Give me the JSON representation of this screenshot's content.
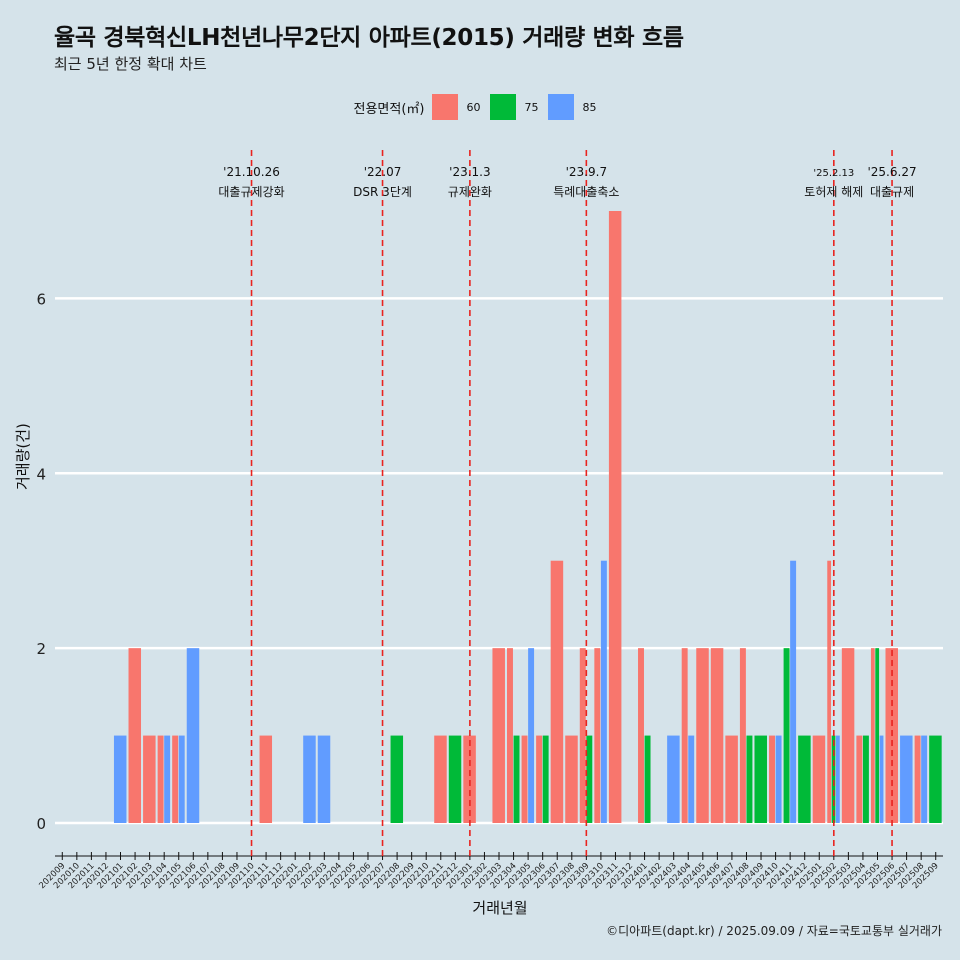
{
  "title": "율곡 경북혁신LH천년나무2단지 아파트(2015) 거래량 변화 흐름",
  "subtitle": "최근 5년 한정 확대 차트",
  "caption": "©디아파트(dapt.kr) / 2025.09.09 / 자료=국토교통부 실거래가",
  "colors": {
    "60": "#f8766d",
    "75": "#00ba38",
    "85": "#619cff",
    "background": "#d5e3ea",
    "event_line": "#e8231f"
  },
  "chart_data": {
    "type": "bar",
    "title": "율곡 경북혁신LH천년나무2단지 아파트(2015) 거래량 변화 흐름",
    "subtitle": "최근 5년 한정 확대 차트",
    "xlabel": "거래년월",
    "ylabel": "거래량(건)",
    "ylim": [
      0,
      7
    ],
    "yticks": [
      0,
      2,
      4,
      6
    ],
    "grid": true,
    "legend": {
      "title": "전용면적(㎡)",
      "position": "top",
      "entries": [
        "60",
        "75",
        "85"
      ]
    },
    "categories": [
      "202009",
      "202010",
      "202011",
      "202012",
      "202101",
      "202102",
      "202103",
      "202104",
      "202105",
      "202106",
      "202107",
      "202108",
      "202109",
      "202110",
      "202111",
      "202112",
      "202201",
      "202202",
      "202203",
      "202204",
      "202205",
      "202206",
      "202207",
      "202208",
      "202209",
      "202210",
      "202211",
      "202212",
      "202301",
      "202302",
      "202303",
      "202304",
      "202305",
      "202306",
      "202307",
      "202308",
      "202309",
      "202310",
      "202311",
      "202312",
      "202401",
      "202402",
      "202403",
      "202404",
      "202405",
      "202406",
      "202407",
      "202408",
      "202409",
      "202410",
      "202411",
      "202412",
      "202501",
      "202502",
      "202503",
      "202504",
      "202505",
      "202506",
      "202507",
      "202508",
      "202509"
    ],
    "tick_labels_shown": [
      "202009",
      "202010",
      "202011",
      "202012",
      "202101",
      "202102",
      "202103",
      "202104",
      "202105",
      "202106",
      "202107",
      "202108",
      "202109",
      "202110",
      "202111",
      "202112",
      "202201",
      "202202",
      "202203",
      "202204",
      "202205",
      "202206",
      "202207",
      "202208",
      "202209",
      "202210",
      "202211",
      "202212",
      "202301",
      "202302",
      "202303",
      "202304",
      "202305",
      "202306",
      "202307",
      "202308",
      "202309",
      "202310",
      "202311",
      "202312",
      "202401",
      "202402",
      "202403",
      "202404",
      "202405",
      "202406",
      "202407",
      "202408",
      "202409",
      "202410",
      "202411",
      "202412",
      "202501",
      "202502",
      "202503",
      "202504",
      "202505",
      "202506",
      "202507",
      "202508",
      "202509"
    ],
    "series": [
      {
        "name": "60",
        "values": [
          0,
          0,
          0,
          0,
          0,
          2,
          1,
          1,
          1,
          0,
          0,
          0,
          0,
          0,
          1,
          0,
          0,
          0,
          0,
          0,
          0,
          0,
          0,
          0,
          0,
          0,
          1,
          0,
          1,
          0,
          2,
          2,
          1,
          1,
          3,
          1,
          2,
          2,
          7,
          0,
          2,
          0,
          0,
          2,
          2,
          2,
          1,
          2,
          0,
          1,
          0,
          0,
          1,
          3,
          2,
          1,
          2,
          2,
          0,
          1,
          0
        ]
      },
      {
        "name": "75",
        "values": [
          0,
          0,
          0,
          0,
          0,
          0,
          0,
          0,
          0,
          0,
          0,
          0,
          0,
          0,
          0,
          0,
          0,
          0,
          0,
          0,
          0,
          0,
          0,
          1,
          0,
          0,
          0,
          1,
          0,
          0,
          0,
          1,
          0,
          1,
          0,
          0,
          1,
          0,
          0,
          0,
          1,
          0,
          0,
          0,
          0,
          0,
          0,
          1,
          1,
          0,
          2,
          1,
          0,
          1,
          0,
          1,
          2,
          0,
          0,
          0,
          1
        ]
      },
      {
        "name": "85",
        "values": [
          0,
          0,
          0,
          0,
          1,
          0,
          0,
          1,
          1,
          2,
          0,
          0,
          0,
          0,
          0,
          0,
          0,
          1,
          1,
          0,
          0,
          0,
          0,
          0,
          0,
          0,
          0,
          0,
          0,
          0,
          0,
          0,
          2,
          0,
          0,
          0,
          0,
          3,
          0,
          0,
          0,
          0,
          1,
          1,
          0,
          0,
          0,
          0,
          0,
          1,
          3,
          0,
          0,
          1,
          0,
          0,
          1,
          0,
          1,
          1,
          0
        ]
      }
    ],
    "events": [
      {
        "date_label": "'21.10.26",
        "text": "대출규제강화",
        "category": "202110"
      },
      {
        "date_label": "'22.07",
        "text": "DSR 3단계",
        "category": "202207"
      },
      {
        "date_label": "'23.1.3",
        "text": "규제완화",
        "category": "202301"
      },
      {
        "date_label": "'23.9.7",
        "text": "특례대출축소",
        "category": "202309"
      },
      {
        "date_label": "'25.2.13",
        "text": "토허제 해제",
        "category": "202502"
      },
      {
        "date_label": "'25.6.27",
        "text": "대출규제",
        "category": "202506"
      }
    ]
  }
}
